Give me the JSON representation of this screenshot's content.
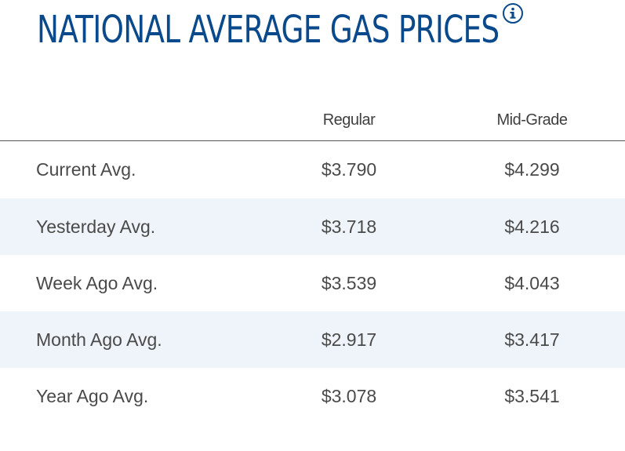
{
  "header": {
    "title": "NATIONAL AVERAGE GAS PRICES",
    "info_icon": "info-icon"
  },
  "table": {
    "columns": [
      "",
      "Regular",
      "Mid-Grade"
    ],
    "rows": [
      {
        "label": "Current Avg.",
        "regular": "$3.790",
        "mid_grade": "$4.299"
      },
      {
        "label": "Yesterday Avg.",
        "regular": "$3.718",
        "mid_grade": "$4.216"
      },
      {
        "label": "Week Ago Avg.",
        "regular": "$3.539",
        "mid_grade": "$4.043"
      },
      {
        "label": "Month Ago Avg.",
        "regular": "$2.917",
        "mid_grade": "$3.417"
      },
      {
        "label": "Year Ago Avg.",
        "regular": "$3.078",
        "mid_grade": "$3.541"
      }
    ]
  },
  "colors": {
    "title": "#0a4a8c",
    "alt_row_bg": "#eef4f9",
    "text": "#4a4a4a"
  }
}
